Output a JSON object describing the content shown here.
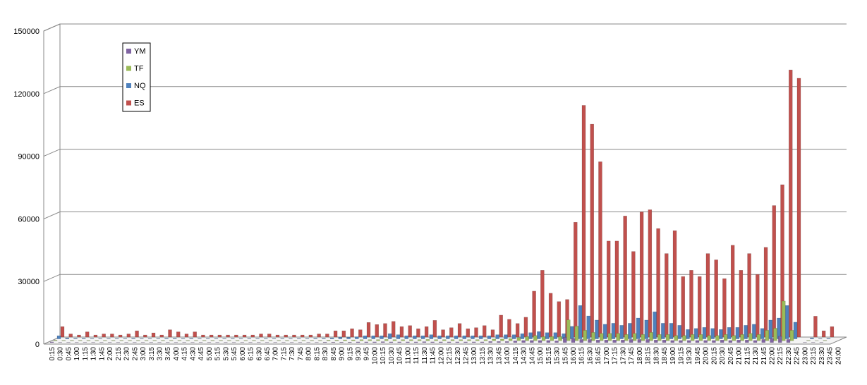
{
  "chart_data": {
    "type": "bar3d",
    "categories": [
      "0:15",
      "0:30",
      "0:45",
      "1:00",
      "1:15",
      "1:30",
      "1:45",
      "2:00",
      "2:15",
      "2:30",
      "2:45",
      "3:00",
      "3:15",
      "3:30",
      "3:45",
      "4:00",
      "4:15",
      "4:30",
      "4:45",
      "5:00",
      "5:15",
      "5:30",
      "5:45",
      "6:00",
      "6:15",
      "6:30",
      "6:45",
      "7:00",
      "7:15",
      "7:30",
      "7:45",
      "8:00",
      "8:15",
      "8:30",
      "8:45",
      "9:00",
      "9:15",
      "9:30",
      "9:45",
      "10:00",
      "10:15",
      "10:30",
      "10:45",
      "11:00",
      "11:15",
      "11:30",
      "11:45",
      "12:00",
      "12:15",
      "12:30",
      "12:45",
      "13:00",
      "13:15",
      "13:30",
      "13:45",
      "14:00",
      "14:15",
      "14:30",
      "14:45",
      "15:00",
      "15:15",
      "15:30",
      "15:45",
      "16:00",
      "16:15",
      "16:30",
      "16:45",
      "17:00",
      "17:15",
      "17:30",
      "17:45",
      "18:00",
      "18:15",
      "18:30",
      "18:45",
      "19:00",
      "19:15",
      "19:30",
      "19:45",
      "20:00",
      "20:15",
      "20:30",
      "20:45",
      "21:00",
      "21:15",
      "21:30",
      "21:45",
      "22:00",
      "22:15",
      "22:30",
      "22:45",
      "23:00",
      "23:15",
      "23:30",
      "23:45",
      "24:00"
    ],
    "series": [
      {
        "name": "YM",
        "color": "#8064a2",
        "values": [
          300,
          100,
          100,
          100,
          100,
          100,
          100,
          100,
          100,
          100,
          100,
          100,
          100,
          100,
          100,
          100,
          100,
          100,
          100,
          100,
          100,
          100,
          100,
          100,
          100,
          100,
          100,
          100,
          100,
          100,
          100,
          100,
          100,
          200,
          200,
          200,
          200,
          300,
          300,
          300,
          400,
          300,
          300,
          300,
          300,
          400,
          300,
          300,
          300,
          300,
          300,
          300,
          300,
          500,
          500,
          500,
          800,
          1000,
          1000,
          1000,
          1000,
          800,
          2500,
          2000,
          1500,
          1500,
          1200,
          1200,
          1200,
          1200,
          1500,
          1500,
          1500,
          1200,
          1200,
          1000,
          1000,
          1000,
          1000,
          1000,
          1000,
          1200,
          1000,
          1200,
          1200,
          1000,
          1500,
          2000,
          3000,
          1500,
          0,
          100,
          100,
          100,
          0,
          0
        ]
      },
      {
        "name": "TF",
        "color": "#9bbb59",
        "values": [
          300,
          200,
          200,
          200,
          200,
          200,
          200,
          200,
          200,
          200,
          200,
          200,
          200,
          200,
          200,
          200,
          200,
          200,
          200,
          200,
          200,
          200,
          200,
          200,
          200,
          200,
          200,
          200,
          200,
          200,
          200,
          200,
          200,
          300,
          300,
          400,
          400,
          500,
          500,
          500,
          600,
          500,
          500,
          500,
          500,
          600,
          500,
          500,
          500,
          500,
          500,
          500,
          500,
          800,
          800,
          1000,
          1500,
          2000,
          2500,
          2000,
          2000,
          2000,
          10000,
          7000,
          5000,
          4000,
          3500,
          3500,
          3500,
          3000,
          3500,
          3000,
          4000,
          3000,
          3000,
          2500,
          2500,
          3000,
          3000,
          2500,
          2500,
          3000,
          2500,
          3000,
          3500,
          3000,
          5000,
          6000,
          19000,
          5000,
          0,
          200,
          100,
          200,
          0,
          0
        ]
      },
      {
        "name": "NQ",
        "color": "#4f81bd",
        "values": [
          1500,
          500,
          300,
          300,
          200,
          200,
          200,
          200,
          200,
          300,
          200,
          200,
          200,
          300,
          300,
          200,
          300,
          200,
          200,
          200,
          200,
          200,
          200,
          200,
          200,
          200,
          200,
          200,
          200,
          200,
          200,
          300,
          300,
          500,
          800,
          800,
          1000,
          1500,
          1500,
          1500,
          2500,
          2000,
          1500,
          1500,
          1500,
          2000,
          1500,
          1500,
          1500,
          1500,
          1500,
          1500,
          1500,
          2000,
          2000,
          2000,
          2500,
          3000,
          3500,
          3000,
          3000,
          2500,
          6000,
          16000,
          11000,
          9000,
          7000,
          7500,
          6500,
          7500,
          10000,
          9000,
          13000,
          7500,
          7500,
          6500,
          4500,
          5000,
          5500,
          5000,
          4500,
          5500,
          5500,
          6500,
          7000,
          5000,
          9000,
          10000,
          16000,
          8000,
          0,
          500,
          200,
          300,
          0,
          0
        ]
      },
      {
        "name": "ES",
        "color": "#c0504d",
        "values": [
          5000,
          1500,
          1000,
          2500,
          1000,
          1500,
          1500,
          1000,
          1500,
          3000,
          1000,
          2000,
          1000,
          3500,
          2500,
          1500,
          2500,
          1000,
          1000,
          1000,
          1000,
          1000,
          1000,
          1000,
          1500,
          1500,
          1000,
          1000,
          1000,
          1000,
          1000,
          1500,
          1500,
          3000,
          3000,
          4000,
          3500,
          7000,
          6000,
          6500,
          7500,
          5000,
          5500,
          4000,
          5000,
          8000,
          3500,
          4500,
          6500,
          4000,
          4500,
          5500,
          3500,
          10500,
          8500,
          6500,
          9500,
          22000,
          32000,
          21000,
          17000,
          18000,
          55000,
          111000,
          102000,
          84000,
          46000,
          46000,
          58000,
          41000,
          60000,
          61000,
          52000,
          40000,
          51000,
          29000,
          32000,
          29000,
          40000,
          37000,
          28000,
          44000,
          32000,
          40000,
          30000,
          43000,
          63000,
          73000,
          128000,
          124000,
          0,
          10000,
          3000,
          5000,
          0,
          0
        ]
      }
    ],
    "ylim": [
      0,
      150000
    ],
    "yticks": [
      0,
      30000,
      60000,
      90000,
      120000,
      150000
    ],
    "grid": true
  }
}
